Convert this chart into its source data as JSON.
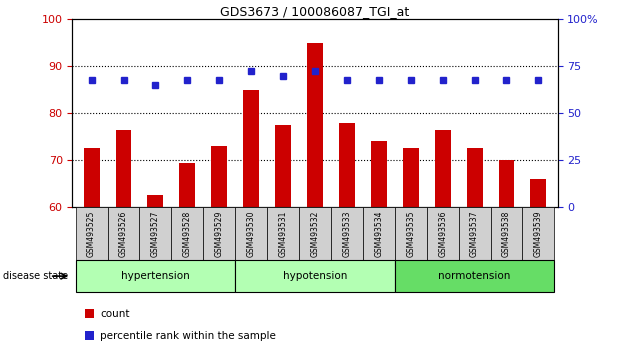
{
  "title": "GDS3673 / 100086087_TGI_at",
  "samples": [
    "GSM493525",
    "GSM493526",
    "GSM493527",
    "GSM493528",
    "GSM493529",
    "GSM493530",
    "GSM493531",
    "GSM493532",
    "GSM493533",
    "GSM493534",
    "GSM493535",
    "GSM493536",
    "GSM493537",
    "GSM493538",
    "GSM493539"
  ],
  "bar_values": [
    72.5,
    76.5,
    62.5,
    69.5,
    73.0,
    85.0,
    77.5,
    95.0,
    78.0,
    74.0,
    72.5,
    76.5,
    72.5,
    70.0,
    66.0
  ],
  "dot_values": [
    87,
    87,
    86,
    87,
    87,
    89,
    88,
    89,
    87,
    87,
    87,
    87,
    87,
    87,
    87
  ],
  "bar_color": "#cc0000",
  "dot_color": "#2222cc",
  "ylim_left": [
    60,
    100
  ],
  "ylim_right": [
    0,
    100
  ],
  "yticks_left": [
    60,
    70,
    80,
    90,
    100
  ],
  "yticks_right": [
    0,
    25,
    50,
    75,
    100
  ],
  "ytick_labels_right": [
    "0",
    "25",
    "50",
    "75",
    "100%"
  ],
  "grid_lines": [
    70,
    80,
    90
  ],
  "groups": [
    {
      "label": "hypertension",
      "start": 0,
      "end": 5
    },
    {
      "label": "hypotension",
      "start": 5,
      "end": 10
    },
    {
      "label": "normotension",
      "start": 10,
      "end": 15
    }
  ],
  "group_color_light": "#b3ffb3",
  "group_color_dark": "#66dd66",
  "disease_state_label": "disease state",
  "legend_count_label": "count",
  "legend_percentile_label": "percentile rank within the sample",
  "bg_xtick": "#d0d0d0",
  "bar_width": 0.5
}
